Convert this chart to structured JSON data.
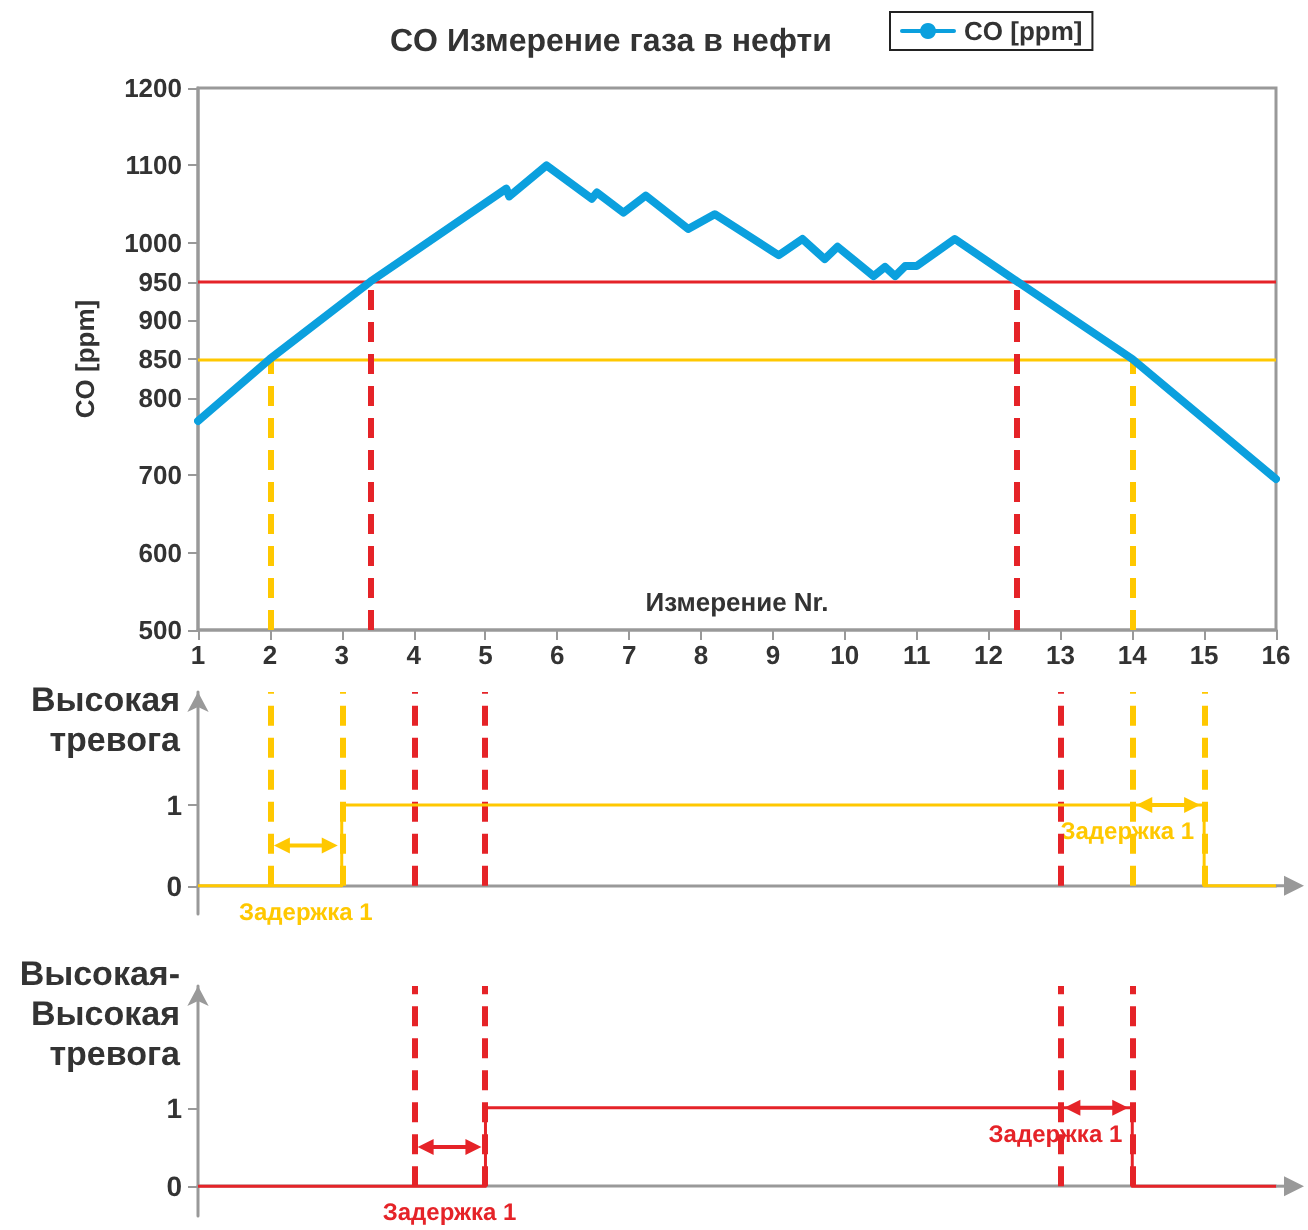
{
  "chart_data": [
    {
      "type": "line",
      "title": "CO Измерение газа в нефти",
      "xlabel": "Измерение Nr.",
      "ylabel": "CO [ppm]",
      "x": [
        1,
        2,
        3.4,
        5.29,
        5.33,
        5.85,
        6.48,
        6.55,
        6.92,
        7.23,
        7.82,
        8.19,
        9.08,
        9.41,
        9.72,
        9.9,
        10.4,
        10.56,
        10.7,
        10.84,
        11.0,
        11.53,
        12.4,
        14,
        16
      ],
      "series": [
        {
          "name": "CO [ppm]",
          "color": "#0ba0de",
          "values": [
            770,
            850,
            950,
            1070,
            1060,
            1100,
            1057,
            1065,
            1039,
            1061,
            1018,
            1037,
            984,
            1005,
            979,
            995,
            957,
            969,
            957,
            970,
            970,
            1005,
            950,
            850,
            695
          ]
        }
      ],
      "xlim": [
        1,
        16
      ],
      "xticks": [
        1,
        2,
        3,
        4,
        5,
        6,
        7,
        8,
        9,
        10,
        11,
        12,
        13,
        14,
        15,
        16
      ],
      "ylim": [
        500,
        1200
      ],
      "yticks": [
        500,
        600,
        700,
        800,
        850,
        900,
        950,
        1000,
        1100,
        1200
      ],
      "grid": false,
      "legend": "top right",
      "marker": "none",
      "ref_lines": [
        {
          "axis": "y",
          "value": 950,
          "color": "#e52328",
          "line_style": "solid"
        },
        {
          "axis": "y",
          "value": 850,
          "color": "#ffc800",
          "line_style": "solid"
        },
        {
          "axis": "x",
          "value": 2,
          "color": "#ffc800",
          "line_style": "dashed"
        },
        {
          "axis": "x",
          "value": 3.4,
          "color": "#e52328",
          "line_style": "dashed"
        },
        {
          "axis": "x",
          "value": 12.4,
          "color": "#e52328",
          "line_style": "dashed"
        },
        {
          "axis": "x",
          "value": 14,
          "color": "#ffc800",
          "line_style": "dashed"
        }
      ]
    },
    {
      "type": "step",
      "ylabel": "Высокая тревога",
      "x": [
        1,
        3,
        15,
        16
      ],
      "series": [
        {
          "color": "#ffc800",
          "values": [
            0,
            1,
            0,
            0
          ]
        }
      ],
      "xlim": [
        1,
        16
      ],
      "ylim": [
        -0.35,
        2.4
      ],
      "yticks": [
        0,
        1
      ],
      "tick_labels": "y",
      "grid": false,
      "marker": "none",
      "ref_lines": [
        {
          "axis": "x",
          "value": 2,
          "color": "#ffc800",
          "line_style": "dashed"
        },
        {
          "axis": "x",
          "value": 3,
          "color": "#ffc800",
          "line_style": "dashed"
        },
        {
          "axis": "x",
          "value": 4,
          "color": "#e52328",
          "line_style": "dashed"
        },
        {
          "axis": "x",
          "value": 5,
          "color": "#e52328",
          "line_style": "dashed"
        },
        {
          "axis": "x",
          "value": 13,
          "color": "#e52328",
          "line_style": "dashed"
        },
        {
          "axis": "x",
          "value": 14,
          "color": "#ffc800",
          "line_style": "dashed"
        },
        {
          "axis": "x",
          "value": 15,
          "color": "#ffc800",
          "line_style": "dashed"
        }
      ],
      "annotations": [
        "Задержка 1",
        "Задержка 1"
      ]
    },
    {
      "type": "step",
      "ylabel": "Высокая-Высокая тревога",
      "x": [
        1,
        5,
        14,
        16
      ],
      "series": [
        {
          "color": "#e52328",
          "values": [
            0,
            1,
            0,
            0
          ]
        }
      ],
      "xlim": [
        1,
        16
      ],
      "ylim": [
        -0.38,
        2.55
      ],
      "yticks": [
        0,
        1
      ],
      "tick_labels": "y",
      "grid": false,
      "marker": "none",
      "ref_lines": [
        {
          "axis": "x",
          "value": 4,
          "color": "#e52328",
          "line_style": "dashed"
        },
        {
          "axis": "x",
          "value": 5,
          "color": "#e52328",
          "line_style": "dashed"
        },
        {
          "axis": "x",
          "value": 13,
          "color": "#e52328",
          "line_style": "dashed"
        },
        {
          "axis": "x",
          "value": 14,
          "color": "#e52328",
          "line_style": "dashed"
        }
      ],
      "annotations": [
        "Задержка 1",
        "Задержка 1"
      ]
    }
  ]
}
